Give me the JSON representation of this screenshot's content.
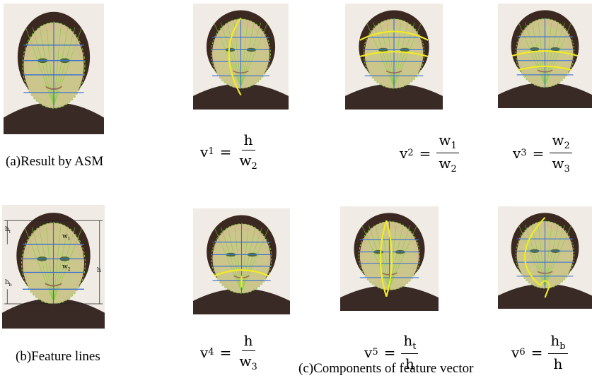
{
  "panel_a": {
    "caption": "(a)Result by ASM"
  },
  "panel_b": {
    "caption": "(b)Feature lines",
    "labels": [
      {
        "text": "h",
        "sub": "t"
      },
      {
        "text": "w",
        "sub": "1"
      },
      {
        "text": "h"
      },
      {
        "text": "w",
        "sub": "2"
      },
      {
        "text": "h",
        "sub": "b"
      }
    ]
  },
  "panel_c": {
    "caption": "(c)Components of feature vector",
    "formulas": [
      {
        "lhs": "v",
        "lhs_sub": "1",
        "relation": "=",
        "num": "h",
        "den": "w",
        "den_sub": "2"
      },
      {
        "lhs": "v",
        "lhs_sub": "2",
        "relation": "=",
        "num": "w",
        "num_sub": "1",
        "den": "w",
        "den_sub": "2"
      },
      {
        "lhs": "v",
        "lhs_sub": "3",
        "relation": "=",
        "num": "w",
        "num_sub": "2",
        "den": "w",
        "den_sub": "3"
      },
      {
        "lhs": "v",
        "lhs_sub": "4",
        "relation": "=",
        "num": "h",
        "den": "w",
        "den_sub": "3"
      },
      {
        "lhs": "v",
        "lhs_sub": "5",
        "relation": "=",
        "num": "h",
        "num_sub": "t",
        "den": "h"
      },
      {
        "lhs": "v",
        "lhs_sub": "6",
        "relation": "=",
        "num": "h",
        "num_sub": "b",
        "den": "h"
      }
    ]
  }
}
